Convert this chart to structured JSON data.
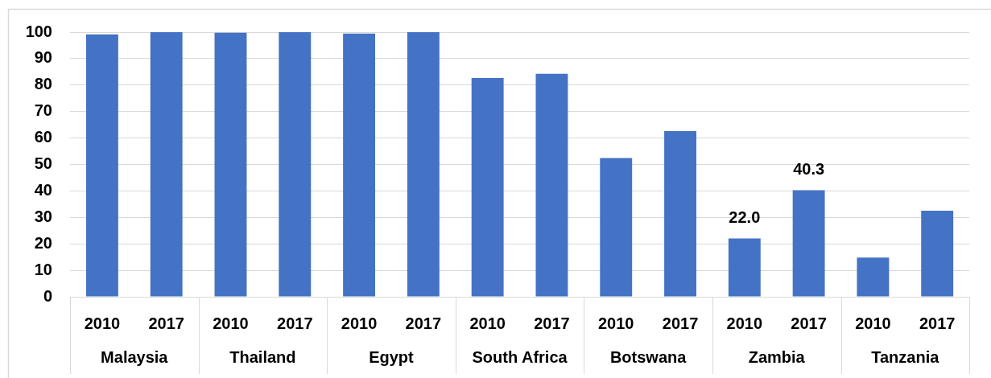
{
  "chart_data": {
    "type": "bar",
    "categories": [
      "Malaysia",
      "Thailand",
      "Egypt",
      "South Africa",
      "Botswana",
      "Zambia",
      "Tanzania"
    ],
    "series": [
      {
        "name": "2010",
        "color": "#4472c4",
        "values": [
          99.2,
          99.8,
          99.5,
          82.7,
          52.4,
          22.0,
          14.8
        ],
        "value_labels": [
          null,
          null,
          null,
          null,
          null,
          "22.0",
          null
        ]
      },
      {
        "name": "2017",
        "color": "#4472c4",
        "values": [
          100,
          100,
          100,
          84.3,
          62.6,
          40.3,
          32.5
        ],
        "value_labels": [
          null,
          null,
          null,
          null,
          null,
          "40.3",
          null
        ]
      }
    ],
    "ylim": [
      0,
      100
    ],
    "yticks": [
      0,
      10,
      20,
      30,
      40,
      50,
      60,
      70,
      80,
      90,
      100
    ],
    "grid": "y"
  }
}
